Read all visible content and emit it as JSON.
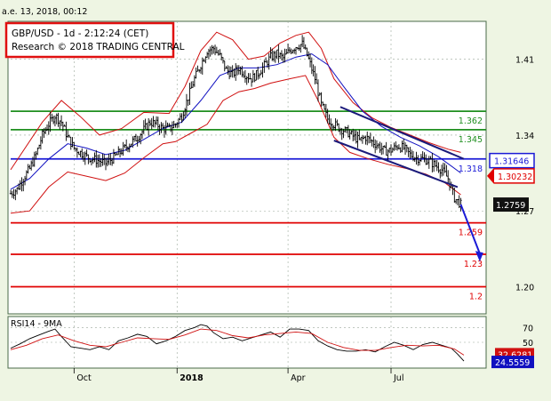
{
  "top_date": "a.e. 13, 2018, 00:12",
  "header": {
    "line1": "GBP/USD - 1d - 2:12:24 (CET)",
    "line2": "Research © 2018 TRADING CENTRAL"
  },
  "colors": {
    "background": "#eef5e3",
    "price_panel": "#ffffff",
    "support_red": "#e00000",
    "resistance_green": "#1f8f1f",
    "pivot_blue": "#1a1ad6",
    "channel": "#1a1a7a",
    "bollinger": "#d01010",
    "ma": "#1010c0",
    "rsi": "#d01010",
    "rsi_ma": "#1010c0"
  },
  "chart_data": [
    {
      "type": "ohlc",
      "title": "GBP/USD - 1d",
      "x_tick_labels": [
        "Oct",
        "2018",
        "Apr",
        "Jul"
      ],
      "y_tick_labels": [
        "1.41",
        "1.34",
        "1.27",
        "1.20"
      ],
      "ylim": [
        1.175,
        1.445
      ],
      "grid": true,
      "current_price": "1.2759",
      "price_labels": [
        {
          "text": "1.31646",
          "value": 1.31646,
          "style": "blue-box"
        },
        {
          "text": "1.30232",
          "value": 1.30232,
          "style": "red-arrow"
        },
        {
          "text": "1.2759",
          "value": 1.2759,
          "style": "dark-box"
        }
      ],
      "horizontal_levels": [
        {
          "label": "1.362",
          "value": 1.362,
          "color": "green"
        },
        {
          "label": "1.345",
          "value": 1.345,
          "color": "green"
        },
        {
          "label": "1.318",
          "value": 1.318,
          "color": "blue"
        },
        {
          "label": "1.259",
          "value": 1.259,
          "color": "red"
        },
        {
          "label": "1.23",
          "value": 1.23,
          "color": "red"
        },
        {
          "label": "1.2",
          "value": 1.2,
          "color": "red"
        }
      ],
      "price_points": [
        [
          0,
          1.286
        ],
        [
          4,
          1.29
        ],
        [
          8,
          1.3
        ],
        [
          12,
          1.309
        ],
        [
          16,
          1.322
        ],
        [
          20,
          1.34
        ],
        [
          24,
          1.35
        ],
        [
          28,
          1.358
        ],
        [
          32,
          1.352
        ],
        [
          36,
          1.338
        ],
        [
          40,
          1.328
        ],
        [
          44,
          1.324
        ],
        [
          48,
          1.32
        ],
        [
          52,
          1.318
        ],
        [
          56,
          1.316
        ],
        [
          60,
          1.314
        ],
        [
          64,
          1.318
        ],
        [
          68,
          1.323
        ],
        [
          72,
          1.328
        ],
        [
          76,
          1.333
        ],
        [
          80,
          1.338
        ],
        [
          84,
          1.345
        ],
        [
          88,
          1.352
        ],
        [
          92,
          1.35
        ],
        [
          96,
          1.346
        ],
        [
          100,
          1.346
        ],
        [
          104,
          1.35
        ],
        [
          108,
          1.358
        ],
        [
          112,
          1.375
        ],
        [
          116,
          1.392
        ],
        [
          120,
          1.405
        ],
        [
          124,
          1.418
        ],
        [
          128,
          1.42
        ],
        [
          132,
          1.413
        ],
        [
          136,
          1.4
        ],
        [
          140,
          1.396
        ],
        [
          144,
          1.402
        ],
        [
          148,
          1.396
        ],
        [
          152,
          1.392
        ],
        [
          156,
          1.397
        ],
        [
          160,
          1.404
        ],
        [
          164,
          1.412
        ],
        [
          168,
          1.415
        ],
        [
          172,
          1.411
        ],
        [
          176,
          1.418
        ],
        [
          180,
          1.422
        ],
        [
          184,
          1.424
        ],
        [
          188,
          1.41
        ],
        [
          192,
          1.392
        ],
        [
          196,
          1.368
        ],
        [
          200,
          1.355
        ],
        [
          204,
          1.35
        ],
        [
          208,
          1.346
        ],
        [
          212,
          1.343
        ],
        [
          216,
          1.339
        ],
        [
          220,
          1.335
        ],
        [
          224,
          1.338
        ],
        [
          228,
          1.334
        ],
        [
          232,
          1.33
        ],
        [
          236,
          1.325
        ],
        [
          240,
          1.326
        ],
        [
          244,
          1.33
        ],
        [
          248,
          1.328
        ],
        [
          252,
          1.322
        ],
        [
          256,
          1.319
        ],
        [
          260,
          1.318
        ],
        [
          264,
          1.316
        ],
        [
          268,
          1.312
        ],
        [
          272,
          1.308
        ],
        [
          276,
          1.3
        ],
        [
          280,
          1.282
        ],
        [
          284,
          1.276
        ]
      ],
      "bollinger_upper": [
        [
          0,
          1.308
        ],
        [
          20,
          1.352
        ],
        [
          32,
          1.372
        ],
        [
          44,
          1.357
        ],
        [
          56,
          1.34
        ],
        [
          70,
          1.346
        ],
        [
          84,
          1.361
        ],
        [
          100,
          1.36
        ],
        [
          110,
          1.385
        ],
        [
          120,
          1.418
        ],
        [
          130,
          1.435
        ],
        [
          140,
          1.428
        ],
        [
          150,
          1.41
        ],
        [
          160,
          1.413
        ],
        [
          170,
          1.425
        ],
        [
          180,
          1.432
        ],
        [
          188,
          1.435
        ],
        [
          196,
          1.42
        ],
        [
          204,
          1.392
        ],
        [
          216,
          1.37
        ],
        [
          228,
          1.356
        ],
        [
          240,
          1.347
        ],
        [
          252,
          1.34
        ],
        [
          264,
          1.333
        ],
        [
          276,
          1.327
        ],
        [
          284,
          1.324
        ]
      ],
      "bollinger_lower": [
        [
          0,
          1.268
        ],
        [
          12,
          1.27
        ],
        [
          24,
          1.292
        ],
        [
          36,
          1.306
        ],
        [
          48,
          1.302
        ],
        [
          60,
          1.298
        ],
        [
          72,
          1.305
        ],
        [
          84,
          1.319
        ],
        [
          96,
          1.332
        ],
        [
          104,
          1.334
        ],
        [
          114,
          1.342
        ],
        [
          124,
          1.35
        ],
        [
          134,
          1.372
        ],
        [
          144,
          1.38
        ],
        [
          154,
          1.383
        ],
        [
          164,
          1.388
        ],
        [
          176,
          1.392
        ],
        [
          186,
          1.395
        ],
        [
          194,
          1.372
        ],
        [
          204,
          1.338
        ],
        [
          214,
          1.324
        ],
        [
          226,
          1.318
        ],
        [
          238,
          1.313
        ],
        [
          250,
          1.309
        ],
        [
          262,
          1.304
        ],
        [
          274,
          1.296
        ],
        [
          284,
          1.285
        ]
      ],
      "moving_average": [
        [
          0,
          1.29
        ],
        [
          12,
          1.3
        ],
        [
          24,
          1.318
        ],
        [
          36,
          1.332
        ],
        [
          48,
          1.328
        ],
        [
          60,
          1.322
        ],
        [
          72,
          1.326
        ],
        [
          84,
          1.336
        ],
        [
          96,
          1.346
        ],
        [
          108,
          1.352
        ],
        [
          120,
          1.372
        ],
        [
          132,
          1.395
        ],
        [
          144,
          1.402
        ],
        [
          156,
          1.402
        ],
        [
          168,
          1.405
        ],
        [
          180,
          1.412
        ],
        [
          190,
          1.415
        ],
        [
          200,
          1.405
        ],
        [
          210,
          1.385
        ],
        [
          222,
          1.362
        ],
        [
          234,
          1.348
        ],
        [
          246,
          1.338
        ],
        [
          258,
          1.33
        ],
        [
          270,
          1.32
        ],
        [
          284,
          1.305
        ]
      ],
      "channel_upper": [
        [
          208,
          1.366
        ],
        [
          286,
          1.318
        ]
      ],
      "channel_lower": [
        [
          204,
          1.335
        ],
        [
          282,
          1.292
        ]
      ],
      "forecast_arrow": [
        [
          284,
          1.276
        ],
        [
          296,
          1.224
        ]
      ]
    },
    {
      "type": "line",
      "title": "RSI14 - 9MA",
      "y_tick_labels": [
        "70",
        "50"
      ],
      "ylim": [
        15,
        85
      ],
      "value_labels": [
        "32.6281",
        "24.5559"
      ],
      "rsi_points": [
        [
          0,
          42
        ],
        [
          6,
          48
        ],
        [
          12,
          55
        ],
        [
          18,
          60
        ],
        [
          24,
          65
        ],
        [
          28,
          68
        ],
        [
          32,
          58
        ],
        [
          38,
          44
        ],
        [
          44,
          42
        ],
        [
          50,
          40
        ],
        [
          56,
          44
        ],
        [
          62,
          40
        ],
        [
          68,
          52
        ],
        [
          74,
          56
        ],
        [
          80,
          61
        ],
        [
          86,
          58
        ],
        [
          92,
          48
        ],
        [
          98,
          52
        ],
        [
          104,
          58
        ],
        [
          110,
          66
        ],
        [
          116,
          70
        ],
        [
          120,
          74
        ],
        [
          124,
          72
        ],
        [
          128,
          63
        ],
        [
          134,
          55
        ],
        [
          140,
          57
        ],
        [
          146,
          52
        ],
        [
          152,
          56
        ],
        [
          158,
          60
        ],
        [
          164,
          64
        ],
        [
          170,
          57
        ],
        [
          176,
          68
        ],
        [
          182,
          68
        ],
        [
          188,
          66
        ],
        [
          194,
          52
        ],
        [
          200,
          45
        ],
        [
          206,
          40
        ],
        [
          212,
          38
        ],
        [
          218,
          38
        ],
        [
          224,
          40
        ],
        [
          230,
          37
        ],
        [
          236,
          44
        ],
        [
          242,
          50
        ],
        [
          248,
          46
        ],
        [
          254,
          40
        ],
        [
          260,
          47
        ],
        [
          266,
          50
        ],
        [
          272,
          46
        ],
        [
          278,
          42
        ],
        [
          282,
          34
        ],
        [
          286,
          24.56
        ]
      ],
      "rsi_ma_points": [
        [
          0,
          40
        ],
        [
          10,
          46
        ],
        [
          20,
          55
        ],
        [
          30,
          60
        ],
        [
          40,
          52
        ],
        [
          50,
          46
        ],
        [
          60,
          44
        ],
        [
          70,
          50
        ],
        [
          80,
          56
        ],
        [
          90,
          55
        ],
        [
          100,
          54
        ],
        [
          110,
          60
        ],
        [
          120,
          68
        ],
        [
          130,
          66
        ],
        [
          140,
          59
        ],
        [
          150,
          56
        ],
        [
          160,
          60
        ],
        [
          170,
          62
        ],
        [
          180,
          64
        ],
        [
          190,
          62
        ],
        [
          200,
          50
        ],
        [
          210,
          43
        ],
        [
          220,
          39
        ],
        [
          230,
          39
        ],
        [
          240,
          43
        ],
        [
          250,
          46
        ],
        [
          260,
          45
        ],
        [
          270,
          46
        ],
        [
          280,
          41
        ],
        [
          286,
          32.63
        ]
      ]
    }
  ]
}
